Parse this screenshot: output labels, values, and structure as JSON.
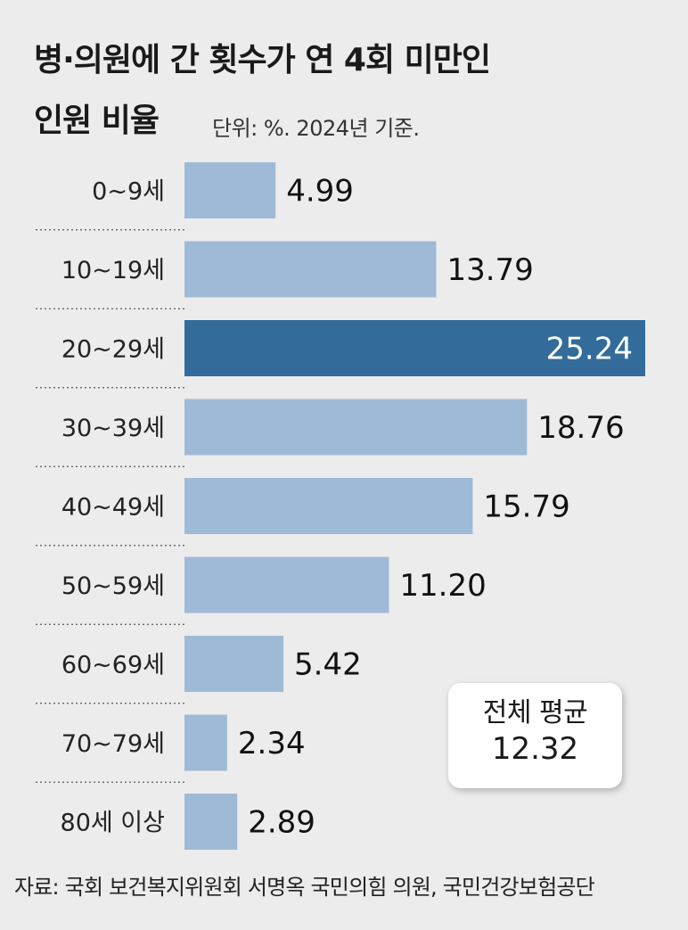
{
  "title_line1": "병·의원에 간 횟수가 연 4회 미만인",
  "title_line2": "인원 비율",
  "unit_note": "단위: %. 2024년 기준.",
  "average": {
    "label": "전체 평균",
    "value": "12.32"
  },
  "source": "자료: 국회 보건복지위원회 서명옥 국민의힘 의원, 국민건강보험공단",
  "colors": {
    "bar": "#9fbad6",
    "highlight": "#336c9a",
    "background": "#ececec",
    "divider": "#555555"
  },
  "chart_data": {
    "type": "bar",
    "orientation": "horizontal",
    "categories": [
      "0~9세",
      "10~19세",
      "20~29세",
      "30~39세",
      "40~49세",
      "50~59세",
      "60~69세",
      "70~79세",
      "80세 이상"
    ],
    "values": [
      4.99,
      13.79,
      25.24,
      18.76,
      15.79,
      11.2,
      5.42,
      2.34,
      2.89
    ],
    "value_labels": [
      "4.99",
      "13.79",
      "25.24",
      "18.76",
      "15.79",
      "11.20",
      "5.42",
      "2.34",
      "2.89"
    ],
    "highlight_index": 2,
    "xlim": [
      0,
      25.24
    ]
  }
}
